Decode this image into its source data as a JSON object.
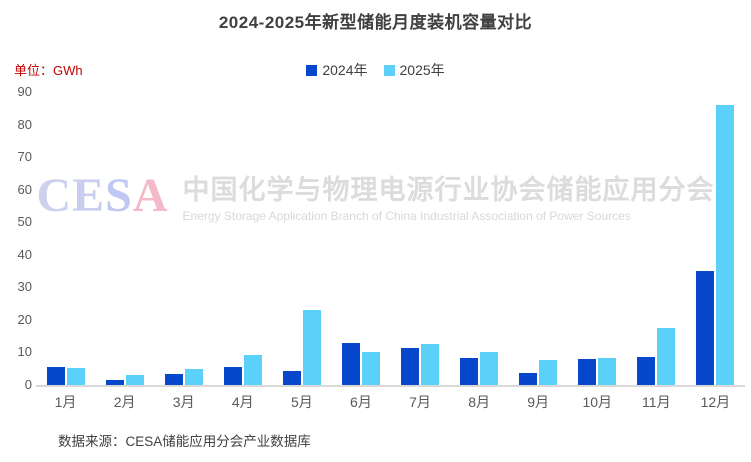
{
  "title": "2024-2025年新型储能月度装机容量对比",
  "unit_label": "单位：GWh",
  "legend": [
    {
      "label": "2024年",
      "color": "#0747cb"
    },
    {
      "label": "2025年",
      "color": "#5bd1fa"
    }
  ],
  "watermark": {
    "logo_letters": [
      {
        "char": "C",
        "color": "#ccd2ee"
      },
      {
        "char": "E",
        "color": "#c9cdf0"
      },
      {
        "char": "S",
        "color": "#bfc8f2"
      },
      {
        "char": "A",
        "color": "#f4b9c8"
      }
    ],
    "cn": "中国化学与物理电源行业协会储能应用分会",
    "en": "Energy Storage Application Branch of China Industrial Association of Power Sources"
  },
  "source": "数据来源：CESA储能应用分会产业数据库",
  "chart_data": {
    "type": "bar",
    "title": "2024-2025年新型储能月度装机容量对比",
    "unit": "GWh",
    "categories": [
      "1月",
      "2月",
      "3月",
      "4月",
      "5月",
      "6月",
      "7月",
      "8月",
      "9月",
      "10月",
      "11月",
      "12月"
    ],
    "series": [
      {
        "name": "2024年",
        "color": "#0747cb",
        "values": [
          5.5,
          1.6,
          3.4,
          5.4,
          4.4,
          13.0,
          11.3,
          8.3,
          3.7,
          8.0,
          8.7,
          35.0
        ]
      },
      {
        "name": "2025年",
        "color": "#5bd1fa",
        "values": [
          5.3,
          3.0,
          4.8,
          9.3,
          23.0,
          10.0,
          12.5,
          10.3,
          7.6,
          8.3,
          17.5,
          86.0
        ]
      }
    ],
    "xlabel": "",
    "ylabel": "GWh",
    "ylim": [
      0,
      90
    ],
    "yticks": [
      0,
      10,
      20,
      30,
      40,
      50,
      60,
      70,
      80,
      90
    ],
    "grid": false,
    "legend_position": "top"
  }
}
